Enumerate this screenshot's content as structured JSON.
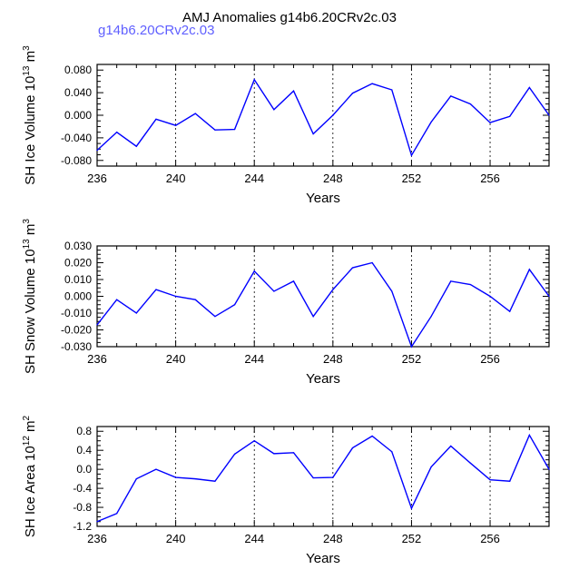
{
  "title": "AMJ Anomalies g14b6.20CRv2c.03",
  "case_label": "g14b6.20CRv2c.03",
  "colors": {
    "line": "#0000ff",
    "case_label": "#6060ff",
    "axis": "#000000",
    "refline": "#000000"
  },
  "chart_data": [
    {
      "type": "line",
      "ylabel": "SH Ice Volume 10",
      "ylabel_exp": "13",
      "ylabel_unit": " m",
      "ylabel_unit_exp": "3",
      "xlabel": "Years",
      "xlim": [
        236,
        259
      ],
      "ylim": [
        -0.09,
        0.09
      ],
      "yticks": [
        -0.08,
        -0.04,
        0.0,
        0.04,
        0.08
      ],
      "ytick_labels": [
        "-0.080",
        "-0.040",
        "0.000",
        "0.040",
        "0.080"
      ],
      "xticks": [
        236,
        240,
        244,
        248,
        252,
        256
      ],
      "xtick_labels": [
        "236",
        "240",
        "244",
        "248",
        "252",
        "256"
      ],
      "reflines": [
        240,
        244,
        248,
        252,
        256
      ],
      "x": [
        236,
        237,
        238,
        239,
        240,
        241,
        242,
        243,
        244,
        245,
        246,
        247,
        248,
        249,
        250,
        251,
        252,
        253,
        254,
        255,
        256,
        257,
        258,
        259
      ],
      "values": [
        -0.062,
        -0.03,
        -0.055,
        -0.007,
        -0.018,
        0.003,
        -0.026,
        -0.025,
        0.063,
        0.01,
        0.043,
        -0.033,
        0.0,
        0.039,
        0.056,
        0.045,
        -0.071,
        -0.012,
        0.034,
        0.02,
        -0.013,
        -0.002,
        0.049,
        0.0
      ]
    },
    {
      "type": "line",
      "ylabel": "SH Snow Volume 10",
      "ylabel_exp": "13",
      "ylabel_unit": " m",
      "ylabel_unit_exp": "3",
      "xlabel": "Years",
      "xlim": [
        236,
        259
      ],
      "ylim": [
        -0.03,
        0.03
      ],
      "yticks": [
        -0.03,
        -0.02,
        -0.01,
        0.0,
        0.01,
        0.02,
        0.03
      ],
      "ytick_labels": [
        "-0.030",
        "-0.020",
        "-0.010",
        "0.000",
        "0.010",
        "0.020",
        "0.030"
      ],
      "xticks": [
        236,
        240,
        244,
        248,
        252,
        256
      ],
      "xtick_labels": [
        "236",
        "240",
        "244",
        "248",
        "252",
        "256"
      ],
      "reflines": [
        240,
        244,
        248,
        252,
        256
      ],
      "x": [
        236,
        237,
        238,
        239,
        240,
        241,
        242,
        243,
        244,
        245,
        246,
        247,
        248,
        249,
        250,
        251,
        252,
        253,
        254,
        255,
        256,
        257,
        258,
        259
      ],
      "values": [
        -0.017,
        -0.002,
        -0.01,
        0.004,
        0.0,
        -0.002,
        -0.012,
        -0.005,
        0.015,
        0.003,
        0.009,
        -0.012,
        0.004,
        0.017,
        0.02,
        0.003,
        -0.03,
        -0.012,
        0.009,
        0.007,
        0.0,
        -0.009,
        0.016,
        0.0
      ]
    },
    {
      "type": "line",
      "ylabel": "SH Ice Area 10",
      "ylabel_exp": "12",
      "ylabel_unit": " m",
      "ylabel_unit_exp": "2",
      "xlabel": "Years",
      "xlim": [
        236,
        259
      ],
      "ylim": [
        -1.2,
        0.9
      ],
      "yticks": [
        -1.2,
        -0.8,
        -0.4,
        0.0,
        0.4,
        0.8
      ],
      "ytick_labels": [
        "-1.2",
        "-0.8",
        "-0.4",
        "0.0",
        "0.4",
        "0.8"
      ],
      "xticks": [
        236,
        240,
        244,
        248,
        252,
        256
      ],
      "xtick_labels": [
        "236",
        "240",
        "244",
        "248",
        "252",
        "256"
      ],
      "reflines": [
        240,
        244,
        248,
        252,
        256
      ],
      "x": [
        236,
        237,
        238,
        239,
        240,
        241,
        242,
        243,
        244,
        245,
        246,
        247,
        248,
        249,
        250,
        251,
        252,
        253,
        254,
        255,
        256,
        257,
        258,
        259
      ],
      "values": [
        -1.1,
        -0.93,
        -0.2,
        0.0,
        -0.17,
        -0.2,
        -0.25,
        0.32,
        0.6,
        0.33,
        0.35,
        -0.18,
        -0.17,
        0.45,
        0.7,
        0.37,
        -0.82,
        0.05,
        0.49,
        0.13,
        -0.22,
        -0.25,
        0.72,
        0.0
      ]
    }
  ]
}
